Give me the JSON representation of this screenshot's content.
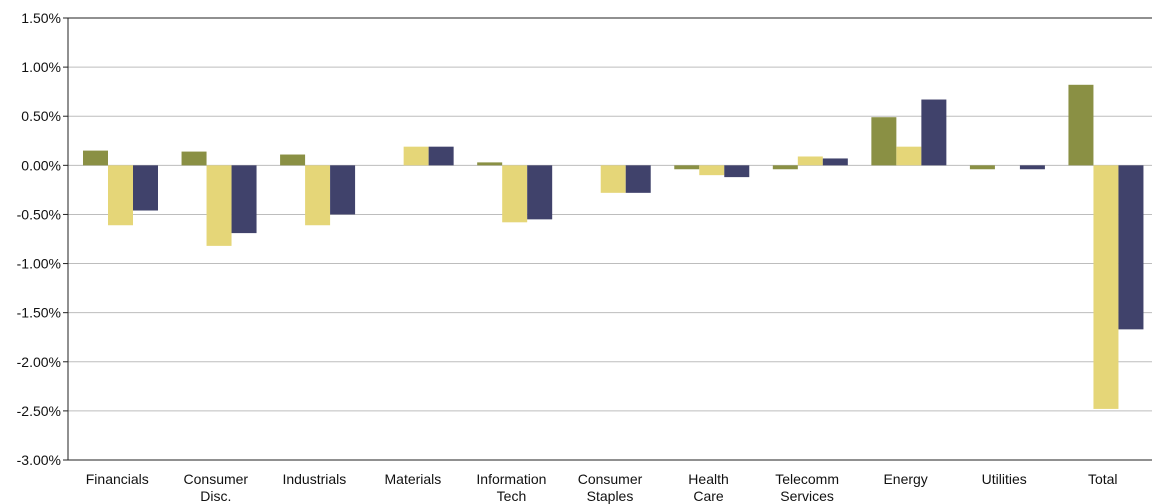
{
  "chart_data": {
    "type": "bar",
    "categories": [
      "Financials",
      "Consumer Disc.",
      "Industrials",
      "Materials",
      "Information Tech",
      "Consumer Staples",
      "Health Care",
      "Telecomm Services",
      "Energy",
      "Utilities",
      "Total"
    ],
    "category_lines": [
      [
        "Financials"
      ],
      [
        "Consumer",
        "Disc."
      ],
      [
        "Industrials"
      ],
      [
        "Materials"
      ],
      [
        "Information",
        "Tech"
      ],
      [
        "Consumer",
        "Staples"
      ],
      [
        "Health",
        "Care"
      ],
      [
        "Telecomm",
        "Services"
      ],
      [
        "Energy"
      ],
      [
        "Utilities"
      ],
      [
        "Total"
      ]
    ],
    "series": [
      {
        "color": "#8a9044",
        "values": [
          0.15,
          0.14,
          0.11,
          0.0,
          0.03,
          0.0,
          -0.04,
          -0.04,
          0.49,
          -0.04,
          0.82
        ]
      },
      {
        "color": "#e5d678",
        "values": [
          -0.61,
          -0.82,
          -0.61,
          0.19,
          -0.58,
          -0.28,
          -0.1,
          0.09,
          0.19,
          0.0,
          -2.48
        ]
      },
      {
        "color": "#40426b",
        "values": [
          -0.46,
          -0.69,
          -0.5,
          0.19,
          -0.55,
          -0.28,
          -0.12,
          0.07,
          0.67,
          -0.04,
          -1.67
        ]
      }
    ],
    "ylim": [
      -3.0,
      1.5
    ],
    "yticks": [
      1.5,
      1.0,
      0.5,
      0.0,
      -0.5,
      -1.0,
      -1.5,
      -2.0,
      -2.5,
      -3.0
    ],
    "ytick_labels": [
      "1.50%",
      "1.00%",
      "0.50%",
      "0.00%",
      "-0.50%",
      "-1.00%",
      "-1.50%",
      "-2.00%",
      "-2.50%",
      "-3.00%"
    ],
    "grid": true,
    "legend": "none",
    "title": "",
    "xlabel": "",
    "ylabel": ""
  }
}
